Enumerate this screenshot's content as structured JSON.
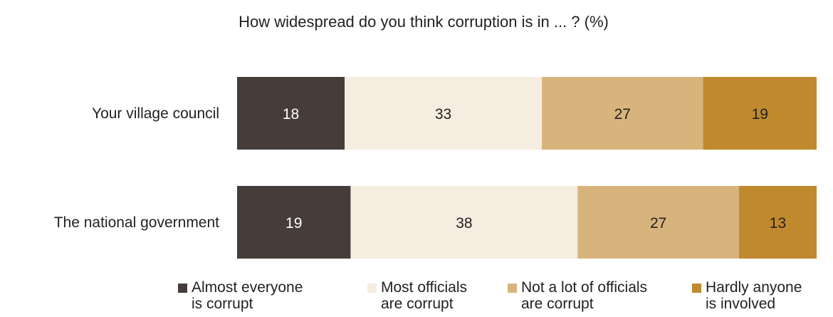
{
  "chart_data": {
    "type": "bar",
    "orientation": "horizontal",
    "stacked": true,
    "title": "How widespread do you think corruption is in ... ? (%)",
    "categories": [
      "Your village council",
      "The national government"
    ],
    "series": [
      {
        "name": "Almost everyone\nis corrupt",
        "values": [
          18,
          19
        ],
        "color": "#463d3b",
        "label_color": "#ffffff"
      },
      {
        "name": "Most officials\nare corrupt",
        "values": [
          33,
          38
        ],
        "color": "#f4ede0",
        "label_color": "#231f20"
      },
      {
        "name": "Not a lot of officials\nare corrupt",
        "values": [
          27,
          27
        ],
        "color": "#d8b47d",
        "label_color": "#231f20"
      },
      {
        "name": "Hardly anyone\nis involved",
        "values": [
          19,
          13
        ],
        "color": "#c0892e",
        "label_color": "#231f20"
      }
    ],
    "legend_position": "bottom",
    "grid": false
  }
}
